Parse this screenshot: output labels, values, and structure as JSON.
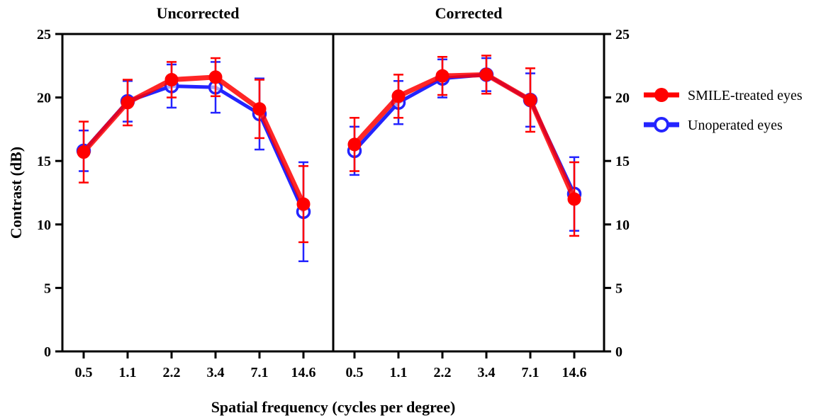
{
  "chart_data": {
    "type": "line",
    "ylabel": "Contrast (dB)",
    "xlabel": "Spatial frequency (cycles per degree)",
    "ylim": [
      0,
      25
    ],
    "yticks": [
      "0",
      "5",
      "10",
      "15",
      "20",
      "25"
    ],
    "categories": [
      "0.5",
      "1.1",
      "2.2",
      "3.4",
      "7.1",
      "14.6"
    ],
    "legend_position": "right",
    "colors": {
      "smile": "#ff0000",
      "unoperated": "#2424ff"
    },
    "legend": [
      {
        "key": "smile",
        "label": "SMILE-treated eyes",
        "marker": "filled-circle"
      },
      {
        "key": "unoperated",
        "label": "Unoperated eyes",
        "marker": "open-circle"
      }
    ],
    "panels": [
      {
        "title": "Uncorrected",
        "series": [
          {
            "name": "SMILE-treated eyes",
            "values": [
              15.7,
              19.6,
              21.4,
              21.6,
              19.1,
              11.6
            ],
            "errors": [
              2.4,
              1.8,
              1.4,
              1.5,
              2.3,
              3.0
            ]
          },
          {
            "name": "Unoperated eyes",
            "values": [
              15.8,
              19.7,
              20.9,
              20.8,
              18.7,
              11.0
            ],
            "errors": [
              1.6,
              1.6,
              1.7,
              2.0,
              2.8,
              3.9
            ]
          }
        ]
      },
      {
        "title": "Corrected",
        "series": [
          {
            "name": "SMILE-treated eyes",
            "values": [
              16.3,
              20.1,
              21.7,
              21.8,
              19.8,
              12.0
            ],
            "errors": [
              2.1,
              1.7,
              1.5,
              1.5,
              2.5,
              2.9
            ]
          },
          {
            "name": "Unoperated eyes",
            "values": [
              15.8,
              19.6,
              21.5,
              21.8,
              19.8,
              12.4
            ],
            "errors": [
              1.9,
              1.7,
              1.5,
              1.3,
              2.1,
              2.9
            ]
          }
        ]
      }
    ]
  }
}
